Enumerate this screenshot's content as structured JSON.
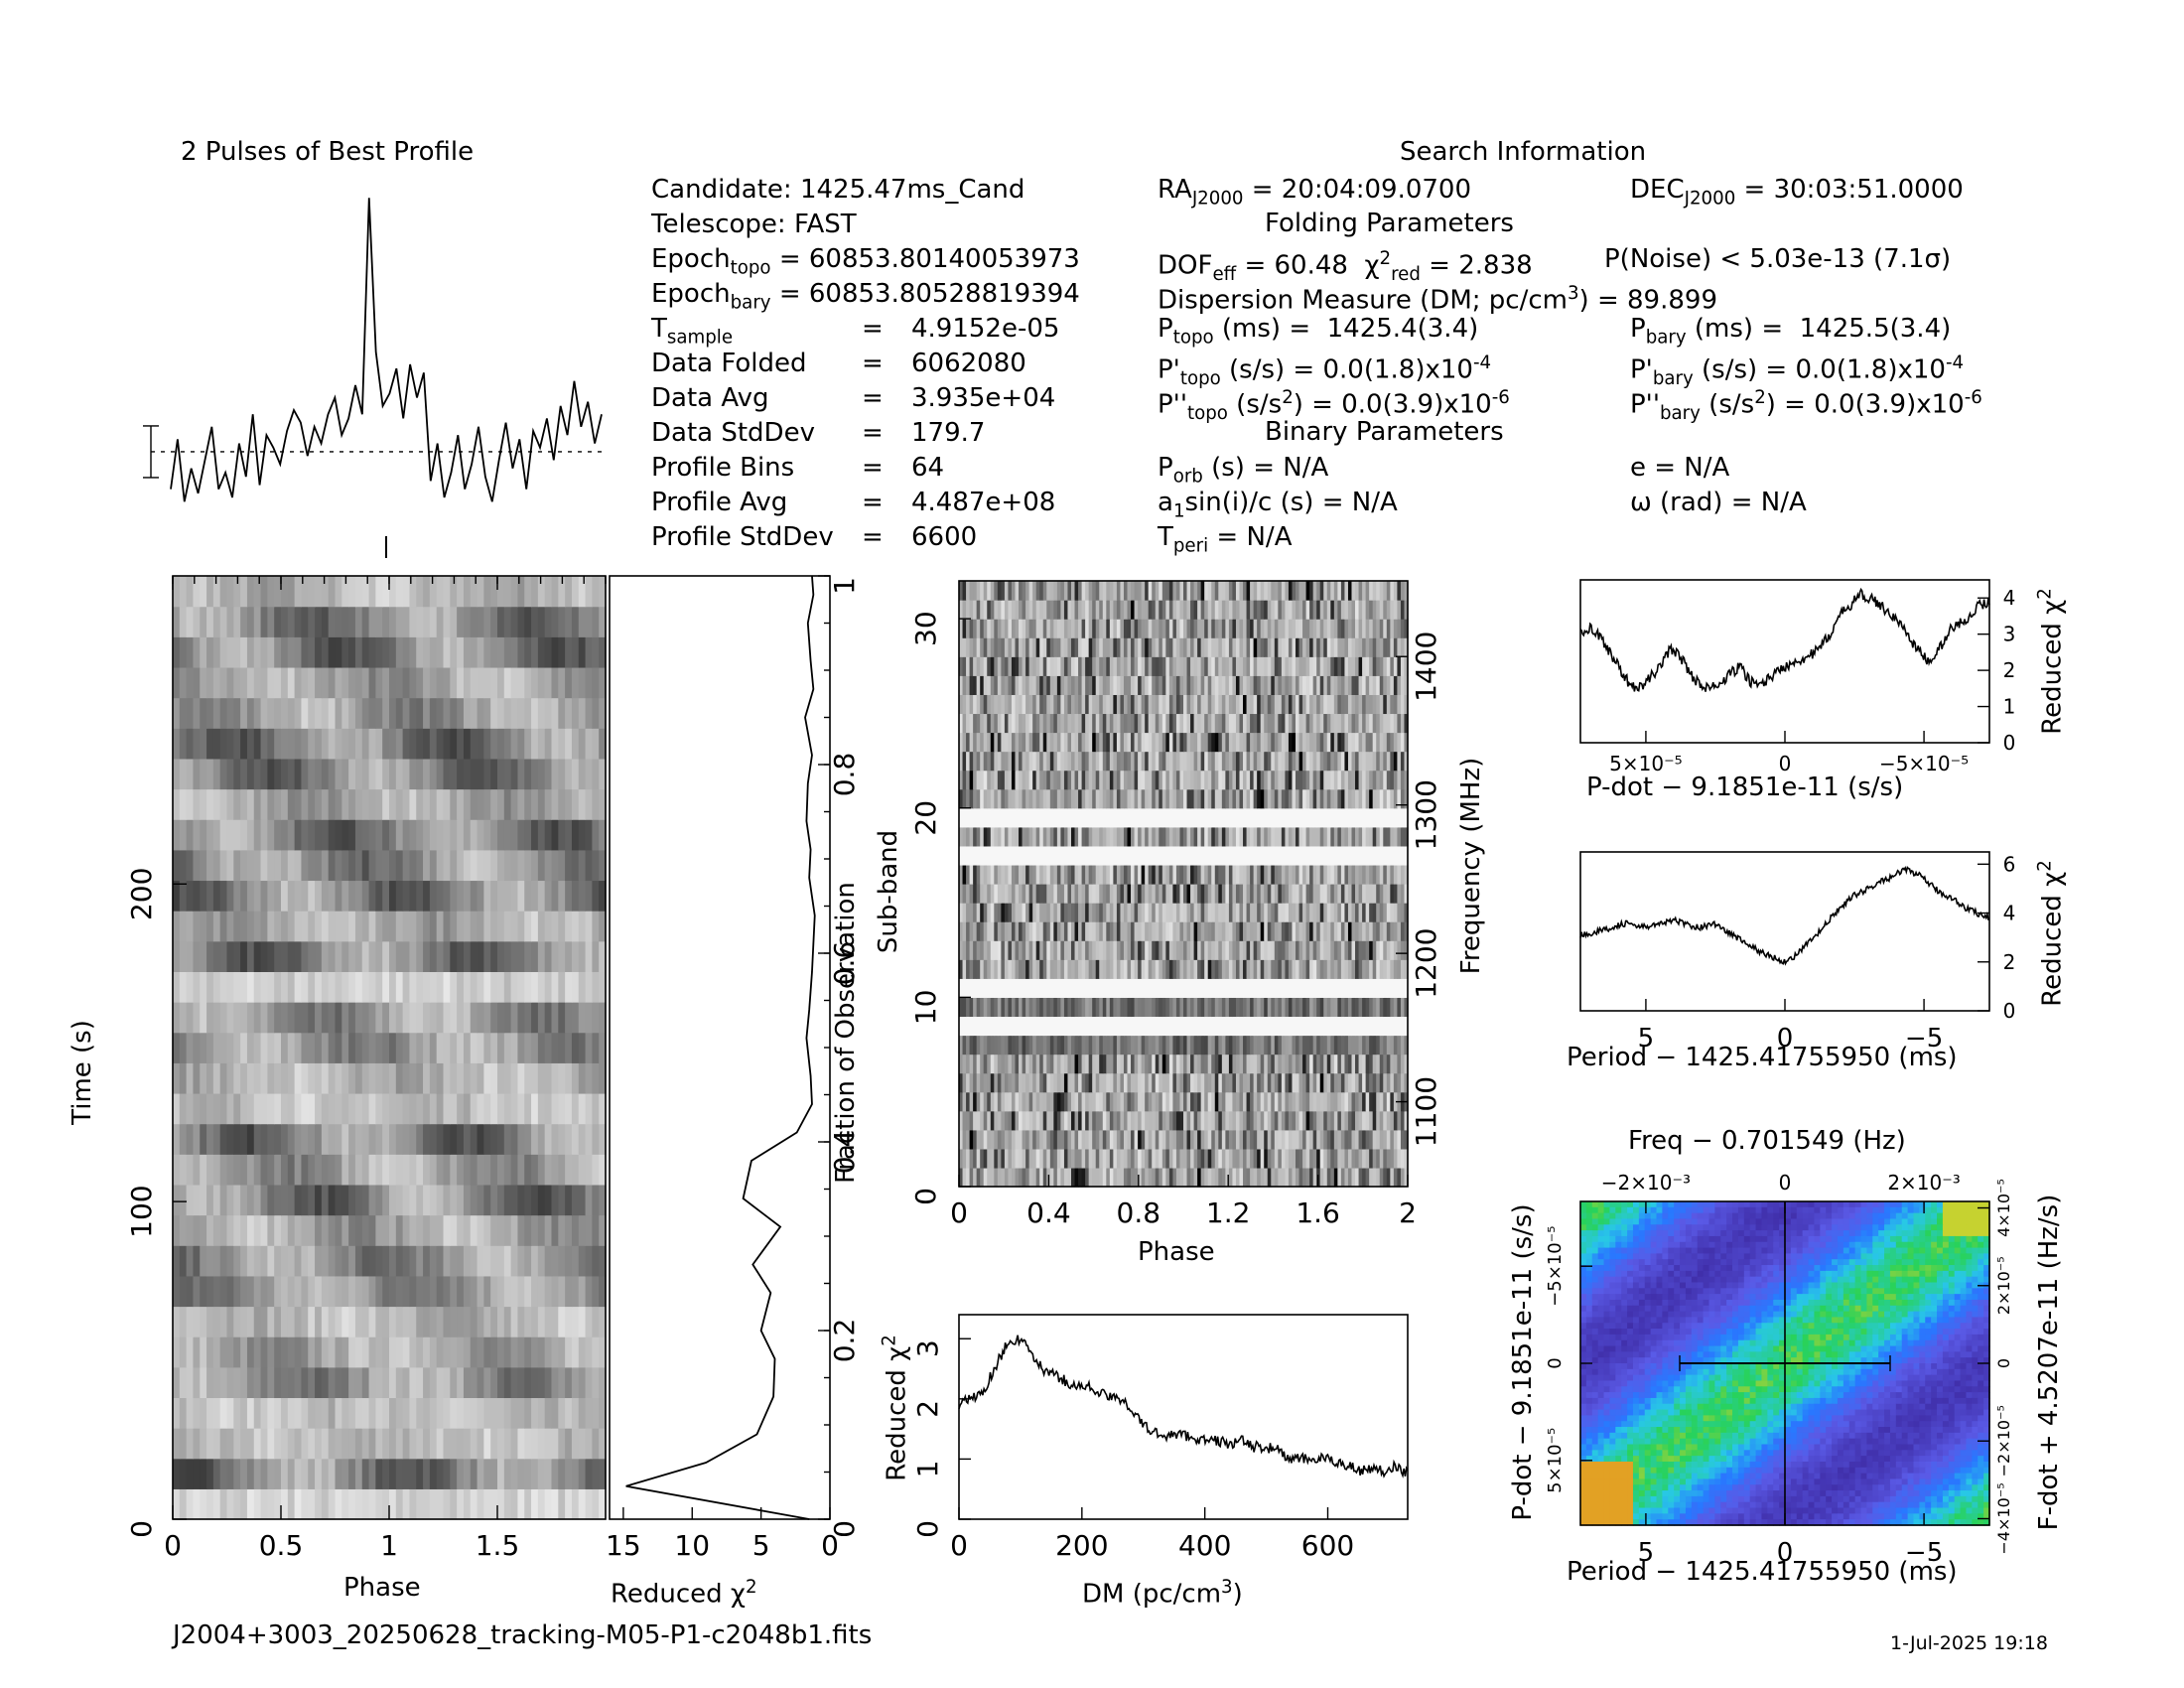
{
  "header": {
    "profile_title": "2 Pulses of Best Profile",
    "search_title": "Search Information",
    "folding_title": "Folding Parameters",
    "binary_title": "Binary Parameters"
  },
  "info": {
    "candidate": "Candidate:  1425.47ms_Cand",
    "telescope": "Telescope:  FAST",
    "epoch_topo": "60853.80140053973",
    "epoch_bary": "60853.80528819394",
    "t_sample": "4.9152e-05",
    "data_folded_label": "Data Folded",
    "data_folded": "6062080",
    "data_avg_label": "Data Avg",
    "data_avg": "3.935e+04",
    "data_stddev_label": "Data StdDev",
    "data_stddev": "179.7",
    "profile_bins_label": "Profile Bins",
    "profile_bins": "64",
    "profile_avg_label": "Profile Avg",
    "profile_avg": "4.487e+08",
    "profile_stddev_label": "Profile StdDev",
    "profile_stddev": "6600"
  },
  "search": {
    "ra": "20:04:09.0700",
    "dec": "30:03:51.0000",
    "dof_eff": "60.48",
    "chi2_red": "2.838",
    "p_noise": "P(Noise) < 5.03e-13  (7.1σ)",
    "dm_text": "89.899",
    "p_topo": "1425.4(3.4)",
    "p_bary": "1425.5(3.4)",
    "pdot_topo": "0.0(1.8)x10",
    "pdot_bary": "0.0(1.8)x10",
    "pdot_exp": "-4",
    "pddot_topo": "0.0(3.9)x10",
    "pddot_bary": "0.0(3.9)x10",
    "pddot_exp": "-6",
    "p_orb": "N/A",
    "e": "e = N/A",
    "a1sini": "N/A",
    "omega": "ω (rad) = N/A",
    "t_peri": "N/A"
  },
  "footer": {
    "filename": "J2004+3003_20250628_tracking-M05-P1-c2048b1.fits",
    "timestamp": "1-Jul-2025 19:18"
  },
  "chart_data": [
    {
      "id": "profile",
      "type": "line",
      "title": "2 Pulses of Best Profile",
      "x": "phase 0-2 (64 bins x 2)",
      "values": [
        -0.9,
        0.3,
        -1.2,
        -0.4,
        -1.0,
        -0.2,
        0.6,
        -0.9,
        -0.5,
        -1.1,
        0.2,
        -0.6,
        0.9,
        -0.8,
        0.4,
        0.1,
        -0.3,
        0.5,
        1.0,
        0.7,
        -0.1,
        0.6,
        0.2,
        0.9,
        1.3,
        0.4,
        0.8,
        1.6,
        0.9,
        6.1,
        2.4,
        1.1,
        1.4,
        2.0,
        0.8,
        2.1,
        1.3,
        1.9,
        -0.7,
        0.2,
        -1.1,
        -0.5,
        0.4,
        -0.9,
        -0.3,
        0.6,
        -0.6,
        -1.2,
        -0.2,
        0.7,
        -0.4,
        0.3,
        -0.9,
        0.5,
        0.1,
        0.8,
        -0.2,
        1.1,
        0.4,
        1.7,
        0.6,
        1.2,
        0.2,
        0.9
      ],
      "axes_label": "",
      "ylim": [
        -1.6,
        6.8
      ]
    },
    {
      "id": "time-phase",
      "type": "heatmap",
      "xlabel": "Phase",
      "ylabel": "Time (s)",
      "xlim": [
        0,
        2
      ],
      "ylim": [
        0,
        297
      ],
      "x_ticks": [
        "0",
        "0.5",
        "1",
        "1.5"
      ],
      "y_ticks": [
        "0",
        "100",
        "200"
      ],
      "right_label": "Fraction of Observation",
      "right_ticks": [
        "0",
        "0.2",
        "0.4",
        "0.6",
        "0.8",
        "1"
      ]
    },
    {
      "id": "time-chi2",
      "type": "line",
      "xlabel": "Reduced χ²",
      "x_ticks": [
        "15",
        "10",
        "5",
        "0"
      ],
      "xlim": [
        16,
        0
      ],
      "fraction": [
        0.0,
        0.035,
        0.06,
        0.09,
        0.13,
        0.17,
        0.2,
        0.24,
        0.27,
        0.31,
        0.34,
        0.38,
        0.41,
        0.44,
        0.47,
        0.51,
        0.54,
        0.58,
        0.61,
        0.64,
        0.68,
        0.71,
        0.74,
        0.78,
        0.81,
        0.85,
        0.88,
        0.91,
        0.95,
        0.98,
        1.0
      ],
      "chi2": [
        1.5,
        14.8,
        9.0,
        5.3,
        4.1,
        4.0,
        5.0,
        4.3,
        5.6,
        3.6,
        6.3,
        5.7,
        2.4,
        1.3,
        1.4,
        1.7,
        1.5,
        1.3,
        1.2,
        1.1,
        1.5,
        1.4,
        1.7,
        1.6,
        1.3,
        1.8,
        1.2,
        1.4,
        1.6,
        1.2,
        1.3
      ]
    },
    {
      "id": "subband-phase",
      "type": "heatmap",
      "xlabel": "Phase",
      "ylabel": "Sub-band",
      "right_label": "Frequency (MHz)",
      "x_ticks": [
        "0",
        "0.4",
        "0.8",
        "1.2",
        "1.6",
        "2"
      ],
      "y_ticks": [
        "0",
        "10",
        "20",
        "30"
      ],
      "right_ticks": [
        "1100",
        "1200",
        "1300",
        "1400"
      ],
      "xlim": [
        0,
        2
      ],
      "ylim": [
        0,
        32
      ]
    },
    {
      "id": "dm-chi2",
      "type": "line",
      "xlabel": "DM (pc/cm³)",
      "ylabel": "Reduced χ²",
      "x_ticks": [
        "0",
        "200",
        "400",
        "600"
      ],
      "y_ticks": [
        "0",
        "1",
        "2",
        "3"
      ],
      "xlim": [
        0,
        730
      ],
      "ylim": [
        0,
        3.4
      ],
      "x": [
        0,
        20,
        40,
        60,
        80,
        90,
        100,
        120,
        140,
        160,
        180,
        200,
        220,
        240,
        260,
        280,
        300,
        320,
        340,
        360,
        380,
        400,
        420,
        440,
        460,
        480,
        500,
        520,
        540,
        560,
        580,
        600,
        620,
        640,
        660,
        680,
        700,
        720,
        730
      ],
      "y": [
        1.9,
        2.0,
        2.1,
        2.5,
        2.9,
        3.0,
        2.8,
        2.5,
        2.4,
        2.3,
        2.2,
        2.2,
        2.1,
        2.0,
        2.0,
        1.7,
        1.5,
        1.4,
        1.4,
        1.4,
        1.35,
        1.3,
        1.3,
        1.25,
        1.3,
        1.2,
        1.2,
        1.15,
        1.0,
        1.0,
        1.0,
        1.0,
        0.95,
        0.9,
        0.8,
        0.85,
        0.8,
        0.9,
        0.75
      ]
    },
    {
      "id": "pdot-chi2",
      "type": "line",
      "xlabel": "P-dot − 9.1851e-11 (s/s)",
      "ylabel": "Reduced χ²",
      "x_ticks": [
        "5×10⁻⁵",
        "0",
        "−5×10⁻⁵"
      ],
      "y_ticks": [
        "0",
        "1",
        "2",
        "3",
        "4"
      ],
      "ylim": [
        0,
        4.5
      ],
      "values": [
        3.0,
        3.2,
        2.9,
        2.5,
        2.0,
        1.6,
        1.5,
        1.8,
        2.1,
        2.6,
        2.4,
        1.9,
        1.6,
        1.5,
        1.6,
        1.9,
        2.1,
        1.7,
        1.6,
        1.8,
        2.0,
        2.2,
        2.3,
        2.4,
        2.6,
        3.0,
        3.5,
        3.8,
        4.1,
        4.0,
        3.8,
        3.6,
        3.3,
        2.9,
        2.5,
        2.2,
        2.6,
        3.1,
        3.3,
        3.5,
        3.8,
        3.9
      ]
    },
    {
      "id": "period-chi2",
      "type": "line",
      "xlabel": "Period − 1425.41755950 (ms)",
      "ylabel": "Reduced χ²",
      "x_ticks": [
        "5",
        "0",
        "−5"
      ],
      "y_ticks": [
        "0",
        "2",
        "4",
        "6"
      ],
      "ylim": [
        0,
        6.5
      ],
      "values": [
        3.1,
        3.2,
        3.3,
        3.5,
        3.6,
        3.4,
        3.5,
        3.6,
        3.7,
        3.5,
        3.4,
        3.6,
        3.3,
        3.0,
        2.7,
        2.4,
        2.2,
        2.0,
        2.3,
        2.8,
        3.3,
        3.9,
        4.4,
        4.8,
        5.0,
        5.3,
        5.5,
        5.8,
        5.6,
        5.2,
        4.8,
        4.6,
        4.2,
        4.0,
        3.8
      ]
    },
    {
      "id": "p-pdot",
      "type": "heatmap",
      "title": "Freq − 0.701549 (Hz)",
      "xlabel": "Period − 1425.41755950 (ms)",
      "ylabel": "P-dot − 9.1851e-11 (s/s)",
      "right_label": "F-dot + 4.5207e-11 (Hz/s)",
      "x_ticks": [
        "5",
        "0",
        "−5"
      ],
      "y_ticks": [
        "5×10⁻⁵",
        "0",
        "−5×10⁻⁵"
      ],
      "top_ticks": [
        "−2×10⁻³",
        "0",
        "2×10⁻³"
      ],
      "right_ticks": [
        "−4×10⁻⁵",
        "−2×10⁻⁵",
        "0",
        "2×10⁻⁵",
        "4×10⁻⁵"
      ]
    }
  ]
}
